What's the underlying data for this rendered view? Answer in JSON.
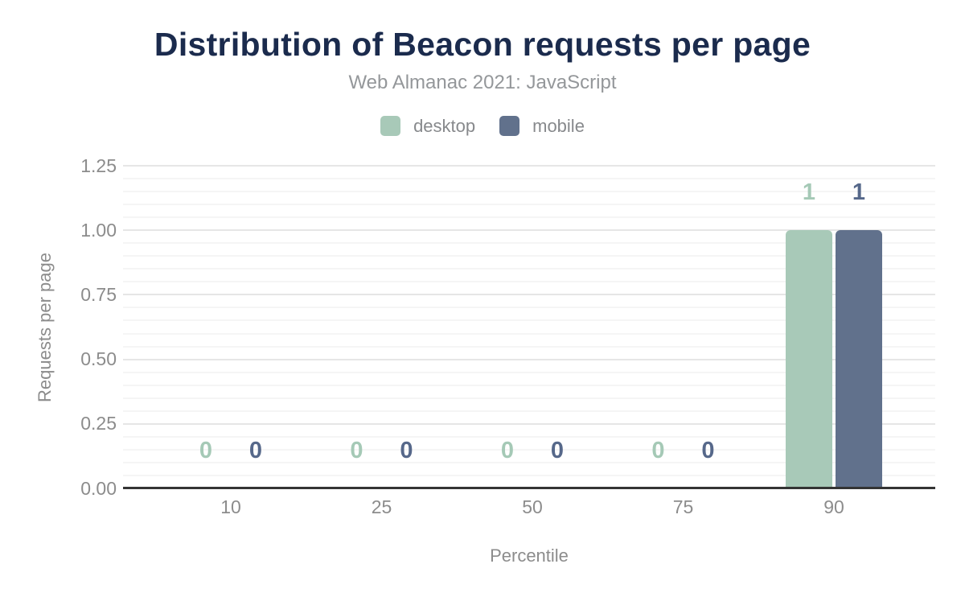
{
  "chart_data": {
    "type": "bar",
    "title": "Distribution of Beacon requests per page",
    "subtitle": "Web Almanac 2021: JavaScript",
    "xlabel": "Percentile",
    "ylabel": "Requests per page",
    "categories": [
      "10",
      "25",
      "50",
      "75",
      "90"
    ],
    "series": [
      {
        "name": "desktop",
        "color": "#a8c9b8",
        "label_color": "#a5c9b6",
        "values": [
          0,
          0,
          0,
          0,
          1
        ]
      },
      {
        "name": "mobile",
        "color": "#61718c",
        "label_color": "#56688a",
        "values": [
          0,
          0,
          0,
          0,
          1
        ]
      }
    ],
    "y_ticks": [
      "0.00",
      "0.25",
      "0.50",
      "0.75",
      "1.00",
      "1.25"
    ],
    "ylim": [
      0,
      1.25
    ],
    "minor_step": 0.05,
    "major_step": 0.25,
    "grid": true,
    "legend_position": "top",
    "data_labels": true
  },
  "colors": {
    "title": "#1b2b4d",
    "subtitle": "#94979a",
    "axis_line": "#343434",
    "tick_label": "#8c8c8c",
    "grid_minor": "#f5f5f5",
    "grid_major": "#e6e6e6",
    "background": "#ffffff"
  }
}
